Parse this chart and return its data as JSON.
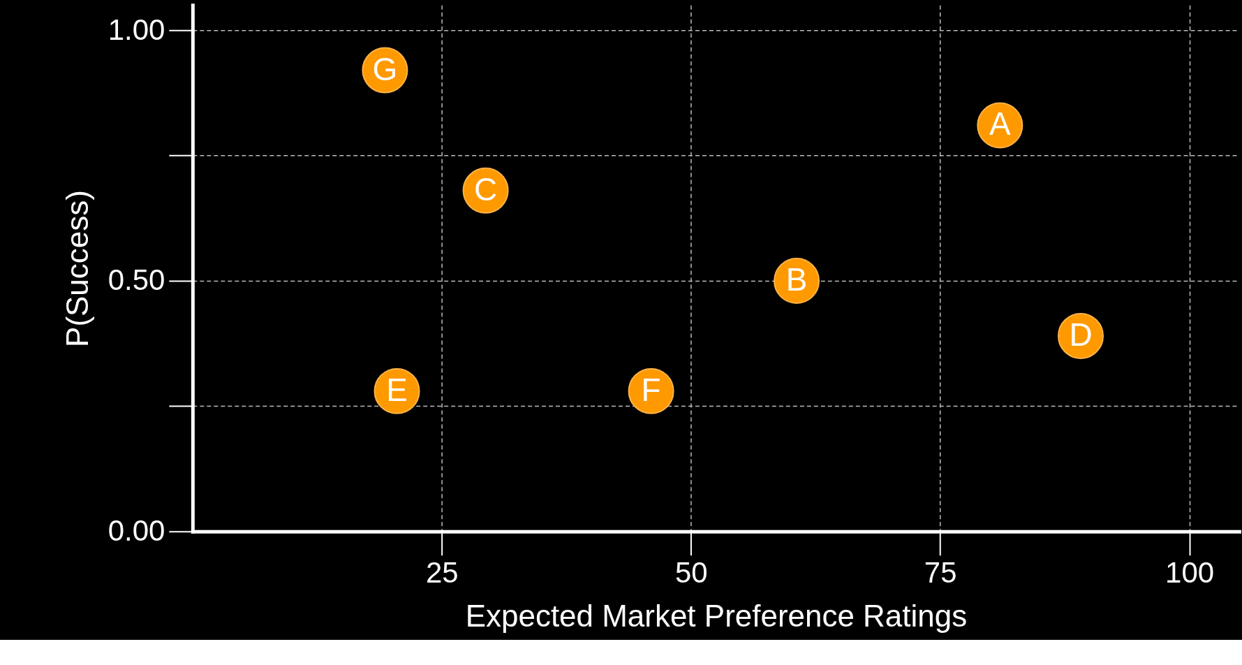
{
  "chart_data": {
    "type": "scatter",
    "xlabel": "Expected Market Preference Ratings",
    "ylabel": "P(Success)",
    "x": [
      81.0,
      60.6,
      29.4,
      89.1,
      20.5,
      46.0,
      19.3
    ],
    "values": [
      0.81,
      0.5,
      0.68,
      0.39,
      0.28,
      0.28,
      0.92
    ],
    "color": "#ff9900",
    "marker": "circle",
    "grid": true,
    "xlim": [
      0,
      105
    ],
    "ylim": [
      0,
      1.05
    ],
    "xticks": [
      25,
      50,
      75,
      100
    ],
    "yticks": [
      {
        "value": 0,
        "label": "0.00"
      },
      {
        "value": 0.25,
        "label": null
      },
      {
        "value": 0.5,
        "label": "0.50"
      },
      {
        "value": 0.75,
        "label": null
      },
      {
        "value": 1,
        "label": "1.00"
      }
    ],
    "annotations": [
      {
        "text": "A",
        "x": 81.0,
        "y": 0.81
      },
      {
        "text": "B",
        "x": 60.6,
        "y": 0.5
      },
      {
        "text": "C",
        "x": 29.4,
        "y": 0.68
      },
      {
        "text": "D",
        "x": 89.1,
        "y": 0.39
      },
      {
        "text": "E",
        "x": 20.5,
        "y": 0.28
      },
      {
        "text": "F",
        "x": 46.0,
        "y": 0.28
      },
      {
        "text": "G",
        "x": 19.3,
        "y": 0.92
      }
    ]
  }
}
